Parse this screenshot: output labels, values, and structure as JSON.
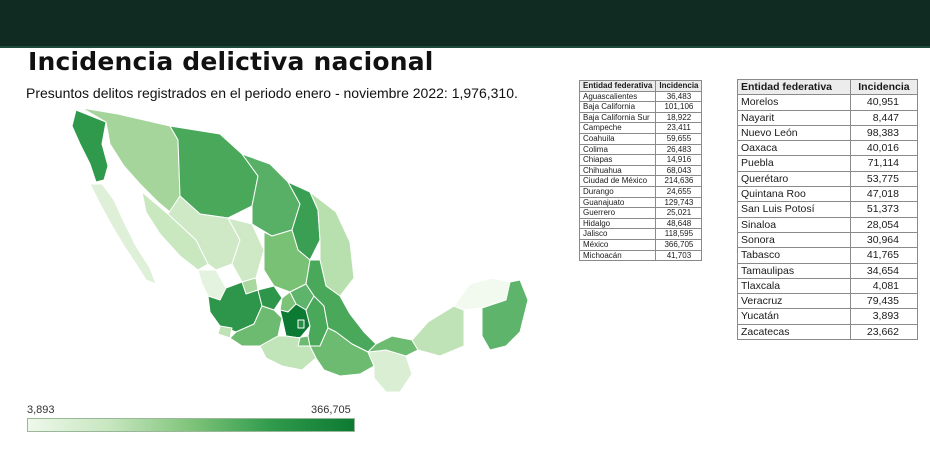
{
  "colors": {
    "header_bar": "#0f2b22",
    "scale_low": "#eef8ea",
    "scale_high": "#0d7a33",
    "map_stroke": "#ffffff"
  },
  "title": "Incidencia delictiva nacional",
  "subtitle": "Presuntos delitos registrados en el periodo enero - noviembre 2022: 1,976,310.",
  "scale": {
    "min_label": "3,893",
    "max_label": "366,705"
  },
  "table_left": {
    "headers": [
      "Entidad federativa",
      "Incidencia"
    ],
    "rows": [
      [
        "Aguascalientes",
        "36,483"
      ],
      [
        "Baja California",
        "101,106"
      ],
      [
        "Baja California Sur",
        "18,922"
      ],
      [
        "Campeche",
        "23,411"
      ],
      [
        "Coahuila",
        "59,655"
      ],
      [
        "Colima",
        "26,483"
      ],
      [
        "Chiapas",
        "14,916"
      ],
      [
        "Chihuahua",
        "68,043"
      ],
      [
        "Ciudad de México",
        "214,636"
      ],
      [
        "Durango",
        "24,655"
      ],
      [
        "Guanajuato",
        "129,743"
      ],
      [
        "Guerrero",
        "25,021"
      ],
      [
        "Hidalgo",
        "48,648"
      ],
      [
        "Jalisco",
        "118,595"
      ],
      [
        "México",
        "366,705"
      ],
      [
        "Michoacán",
        "41,703"
      ]
    ]
  },
  "table_right": {
    "headers": [
      "Entidad federativa",
      "Incidencia"
    ],
    "rows": [
      [
        "Morelos",
        "40,951"
      ],
      [
        "Nayarit",
        "8,447"
      ],
      [
        "Nuevo León",
        "98,383"
      ],
      [
        "Oaxaca",
        "40,016"
      ],
      [
        "Puebla",
        "71,114"
      ],
      [
        "Querétaro",
        "53,775"
      ],
      [
        "Quintana Roo",
        "47,018"
      ],
      [
        "San Luis Potosí",
        "51,373"
      ],
      [
        "Sinaloa",
        "28,054"
      ],
      [
        "Sonora",
        "30,964"
      ],
      [
        "Tabasco",
        "41,765"
      ],
      [
        "Tamaulipas",
        "34,654"
      ],
      [
        "Tlaxcala",
        "4,081"
      ],
      [
        "Veracruz",
        "79,435"
      ],
      [
        "Yucatán",
        "3,893"
      ],
      [
        "Zacatecas",
        "23,662"
      ]
    ]
  }
}
